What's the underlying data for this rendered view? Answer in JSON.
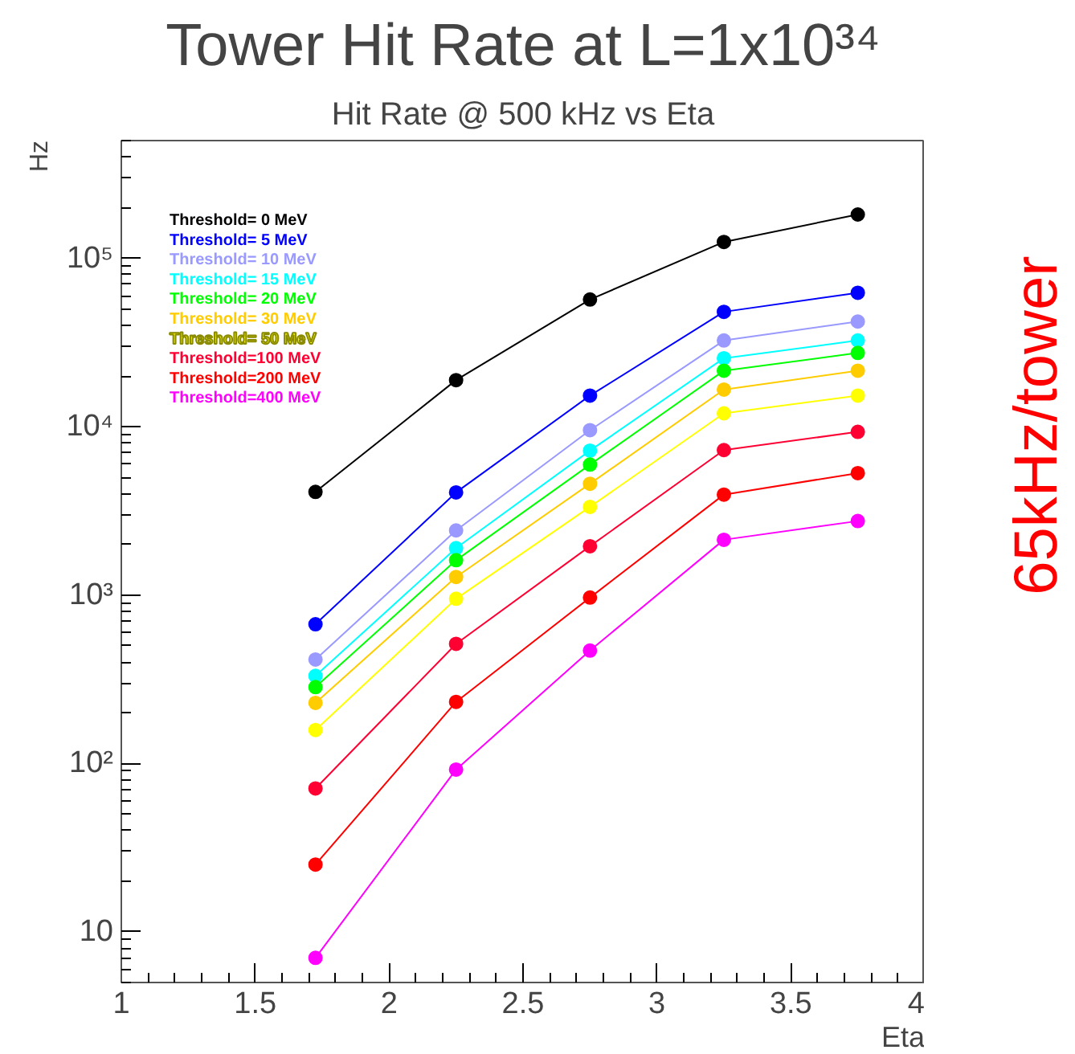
{
  "chart_data": {
    "type": "line",
    "title": "Tower Hit Rate at L=1x10³⁴",
    "subtitle": "Hit Rate @ 500 kHz vs Eta",
    "xlabel": "Eta",
    "ylabel": "Hz",
    "x": [
      1.725,
      2.25,
      2.75,
      3.25,
      3.75
    ],
    "xlim": [
      1,
      4
    ],
    "xticks": [
      1,
      1.5,
      2,
      2.5,
      3,
      3.5,
      4
    ],
    "ylim": [
      5,
      500000
    ],
    "yticks": [
      10,
      {
        "value": 100,
        "label": "10²"
      },
      {
        "value": 1000,
        "label": "10³"
      },
      {
        "value": 10000,
        "label": "10⁴"
      },
      {
        "value": 100000,
        "label": "10⁵"
      }
    ],
    "log": "y",
    "grid": false,
    "marker": "circle",
    "line_style": "solid",
    "series": [
      {
        "name": "Threshold=  0 MeV",
        "color": "#000000",
        "values": [
          4100,
          18900,
          56900,
          125000,
          182000
        ]
      },
      {
        "name": "Threshold=  5 MeV",
        "color": "#0000ff",
        "values": [
          671,
          4070,
          15300,
          48100,
          62400
        ]
      },
      {
        "name": "Threshold= 10 MeV",
        "color": "#9999ff",
        "values": [
          414,
          2420,
          9530,
          32500,
          42100
        ]
      },
      {
        "name": "Threshold= 15 MeV",
        "color": "#00ffff",
        "values": [
          331,
          1900,
          7210,
          25500,
          32500
        ]
      },
      {
        "name": "Threshold= 20 MeV",
        "color": "#00ff00",
        "values": [
          284,
          1610,
          5950,
          21500,
          27400
        ]
      },
      {
        "name": "Threshold= 30 MeV",
        "color": "#ffcc00",
        "values": [
          229,
          1280,
          4580,
          16600,
          21500
        ]
      },
      {
        "name": "Threshold= 50 MeV",
        "color": "#ffff00",
        "values": [
          158,
          950,
          3340,
          12000,
          15300
        ]
      },
      {
        "name": "Threshold=100 MeV",
        "color": "#ff0033",
        "values": [
          71,
          513,
          1950,
          7260,
          9310
        ]
      },
      {
        "name": "Threshold=200 MeV",
        "color": "#ff0000",
        "values": [
          25.1,
          232,
          966,
          3950,
          5300
        ]
      },
      {
        "name": "Threshold=400 MeV",
        "color": "#ff00ff",
        "values": [
          7.0,
          92,
          468,
          2130,
          2750
        ]
      }
    ],
    "annotations": [
      "65kHz/tower"
    ]
  }
}
